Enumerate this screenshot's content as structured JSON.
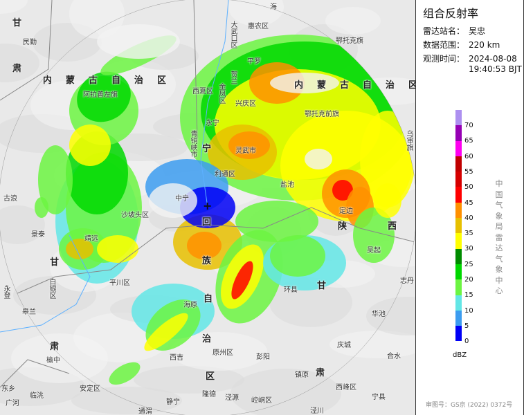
{
  "panel": {
    "title": "组合反射率",
    "station_label": "雷达站名：",
    "station": "吴忠",
    "range_label": "数据范围：",
    "range": "220 km",
    "time_label": "观测时间：",
    "date": "2024-08-08",
    "time": "19:40:53 BJT",
    "org": "中国气象局雷达气象中心",
    "unit": "dBZ",
    "approval": "审图号：GS京 (2022) 0372号"
  },
  "legend": {
    "ticks": [
      "70",
      "65",
      "60",
      "55",
      "50",
      "45",
      "40",
      "35",
      "30",
      "25",
      "20",
      "15",
      "10",
      "5",
      "0"
    ],
    "colors": [
      "#ad90f0",
      "#9600b4",
      "#ff00f0",
      "#c00000",
      "#d60000",
      "#ff0000",
      "#ff9000",
      "#e7c000",
      "#ffff00",
      "#008c00",
      "#00d800",
      "#6cf542",
      "#63e6e6",
      "#3c9cf0",
      "#0000f6"
    ]
  },
  "map": {
    "station_marker": "+",
    "labels": [
      "甘",
      "民勤",
      "肃",
      "内蒙古自治区",
      "阿拉善左旗",
      "西夏区",
      "大武口区",
      "惠农区",
      "平罗",
      "贺兰",
      "金凤区",
      "兴庆区",
      "永宁",
      "鄂托克旗",
      "内蒙古自治区",
      "鄂托克前旗",
      "灵武市",
      "青铜峡市",
      "乌审旗",
      "利通区",
      "中宁",
      "盐池",
      "定边",
      "古浪",
      "景泰",
      "靖远",
      "甘",
      "白银区",
      "永登",
      "皋兰",
      "平川区",
      "海原",
      "西吉",
      "肃",
      "榆中",
      "安定区",
      "临洮",
      "东乡",
      "广河",
      "静宁",
      "通渭",
      "沙坡头区",
      "环县",
      "甘",
      "华池",
      "庆城",
      "合水",
      "彭阳",
      "原州区",
      "镇原",
      "肃",
      "西峰区",
      "宁县",
      "隆德",
      "泾源",
      "崆峒区",
      "泾川",
      "志丹",
      "吴起",
      "陕",
      "西",
      "回",
      "族",
      "自",
      "治",
      "区",
      "宁",
      "海"
    ]
  }
}
